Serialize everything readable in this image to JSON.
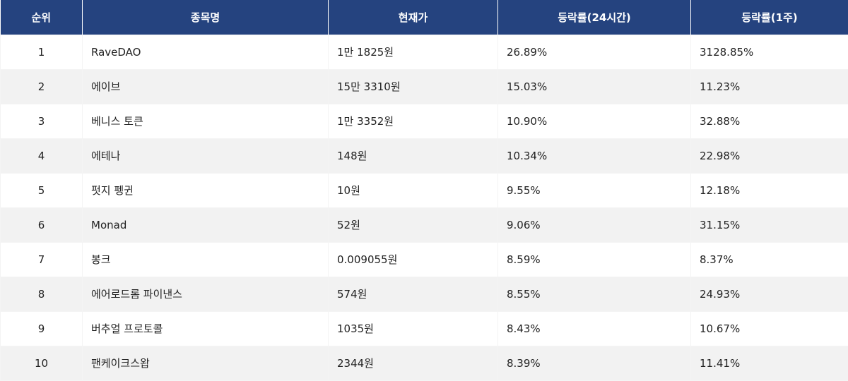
{
  "table": {
    "colors": {
      "header_bg": "#25437f",
      "header_text": "#ffffff",
      "row_alt_bg": "#f2f2f2",
      "row_bg": "#ffffff"
    },
    "headers": {
      "rank": "순위",
      "name": "종목명",
      "price": "현재가",
      "change_24h": "등락률(24시간)",
      "change_1w": "등락률(1주)"
    },
    "rows": [
      {
        "rank": "1",
        "name": "RaveDAO",
        "price": "1만 1825원",
        "change_24h": "26.89%",
        "change_1w": "3128.85%"
      },
      {
        "rank": "2",
        "name": "에이브",
        "price": "15만 3310원",
        "change_24h": "15.03%",
        "change_1w": "11.23%"
      },
      {
        "rank": "3",
        "name": "베니스 토큰",
        "price": "1만 3352원",
        "change_24h": "10.90%",
        "change_1w": "32.88%"
      },
      {
        "rank": "4",
        "name": "에테나",
        "price": "148원",
        "change_24h": "10.34%",
        "change_1w": "22.98%"
      },
      {
        "rank": "5",
        "name": "펏지 펭귄",
        "price": "10원",
        "change_24h": "9.55%",
        "change_1w": "12.18%"
      },
      {
        "rank": "6",
        "name": "Monad",
        "price": "52원",
        "change_24h": "9.06%",
        "change_1w": "31.15%"
      },
      {
        "rank": "7",
        "name": "봉크",
        "price": "0.009055원",
        "change_24h": "8.59%",
        "change_1w": "8.37%"
      },
      {
        "rank": "8",
        "name": "에어로드롬 파이낸스",
        "price": "574원",
        "change_24h": "8.55%",
        "change_1w": "24.93%"
      },
      {
        "rank": "9",
        "name": "버추얼 프로토콜",
        "price": "1035원",
        "change_24h": "8.43%",
        "change_1w": "10.67%"
      },
      {
        "rank": "10",
        "name": "팬케이크스왑",
        "price": "2344원",
        "change_24h": "8.39%",
        "change_1w": "11.41%"
      }
    ]
  }
}
